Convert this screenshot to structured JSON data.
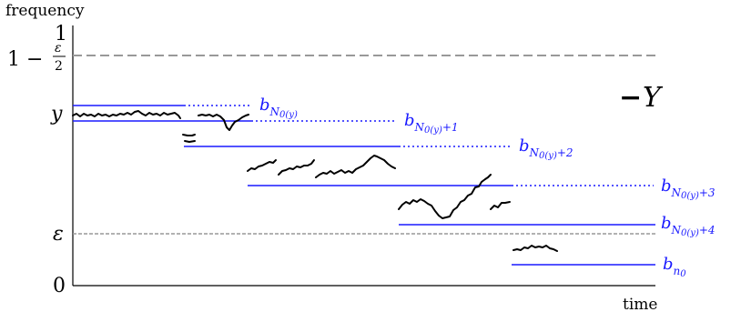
{
  "axis": {
    "y_title": "frequency",
    "x_title": "time",
    "tick_1": "1",
    "tick_top_prefix": "1 −",
    "tick_top_num": "ε",
    "tick_top_den": "2",
    "tick_y": "y",
    "tick_eps": "ε",
    "tick_0": "0"
  },
  "legend": {
    "dash": "−",
    "var": "Y"
  },
  "barriers": [
    {
      "base": "b",
      "sub": "N",
      "sub2": "0(y)",
      "suffix": ""
    },
    {
      "base": "b",
      "sub": "N",
      "sub2": "0(y)",
      "suffix": "+1"
    },
    {
      "base": "b",
      "sub": "N",
      "sub2": "0(y)",
      "suffix": "+2"
    },
    {
      "base": "b",
      "sub": "N",
      "sub2": "0(y)",
      "suffix": "+3"
    },
    {
      "base": "b",
      "sub": "N",
      "sub2": "0(y)",
      "suffix": "+4"
    },
    {
      "base": "b",
      "sub": "n",
      "sub2": "0",
      "suffix": ""
    }
  ],
  "colors": {
    "barrier": "#1a1aff",
    "path": "#000000",
    "dashed": "#999999"
  }
}
